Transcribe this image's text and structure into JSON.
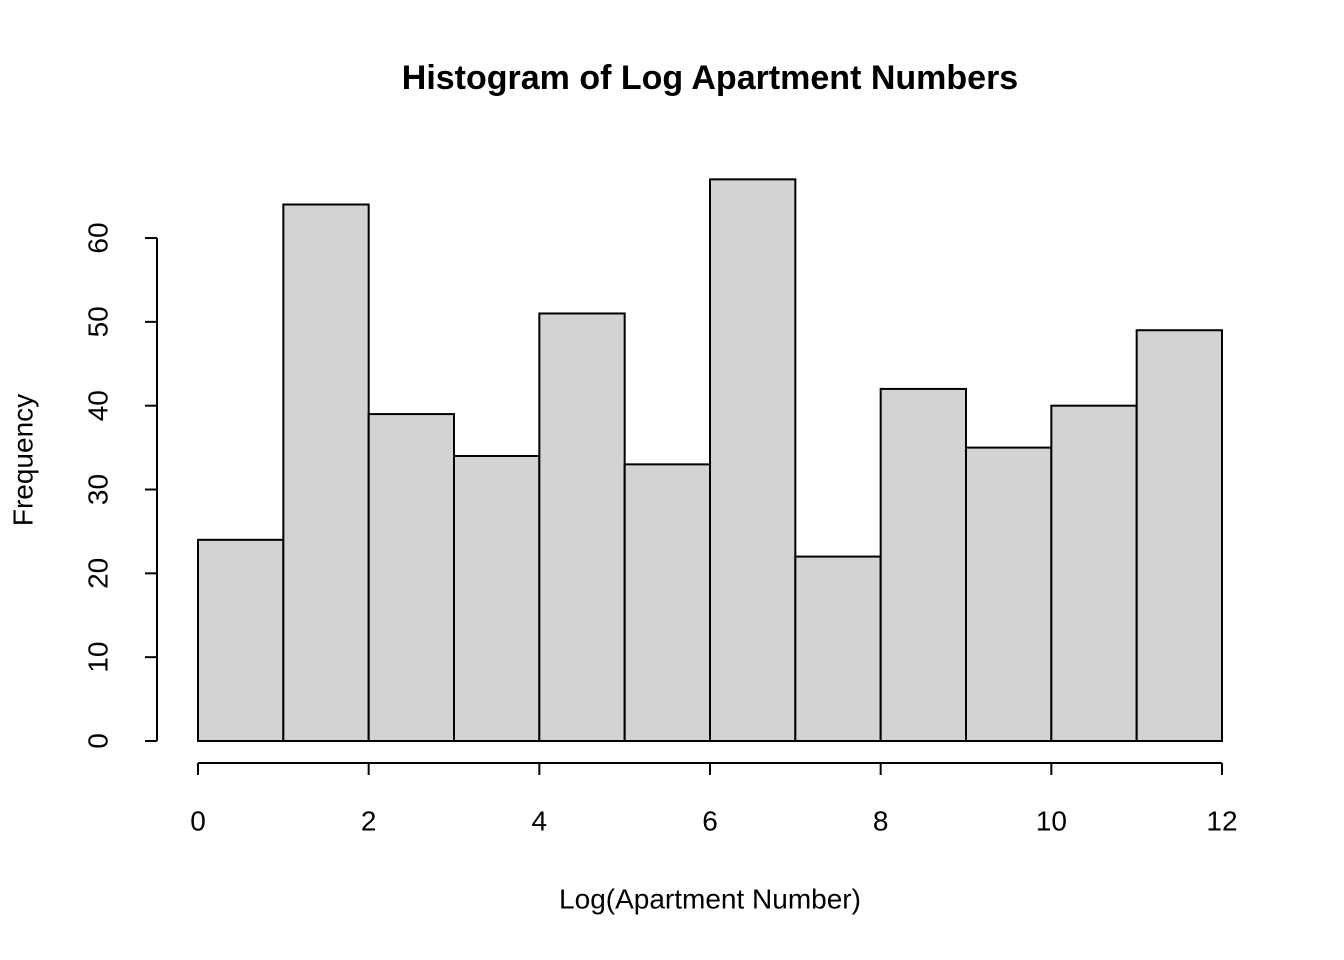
{
  "chart_data": {
    "type": "histogram",
    "title": "Histogram of Log Apartment Numbers",
    "x_label": "Log(Apartment Number)",
    "y_label": "Frequency",
    "bins": [
      0,
      1,
      2,
      3,
      4,
      5,
      6,
      7,
      8,
      9,
      10,
      11,
      12
    ],
    "values": [
      24,
      64,
      39,
      34,
      51,
      33,
      67,
      22,
      42,
      35,
      40,
      49
    ],
    "color": "#d3d3d3",
    "xlim": [
      0,
      12
    ],
    "xticks": [
      0,
      2,
      4,
      6,
      8,
      10,
      12
    ],
    "ylim": [
      0,
      70
    ],
    "yticks": [
      0,
      10,
      20,
      30,
      40,
      50,
      60
    ]
  }
}
